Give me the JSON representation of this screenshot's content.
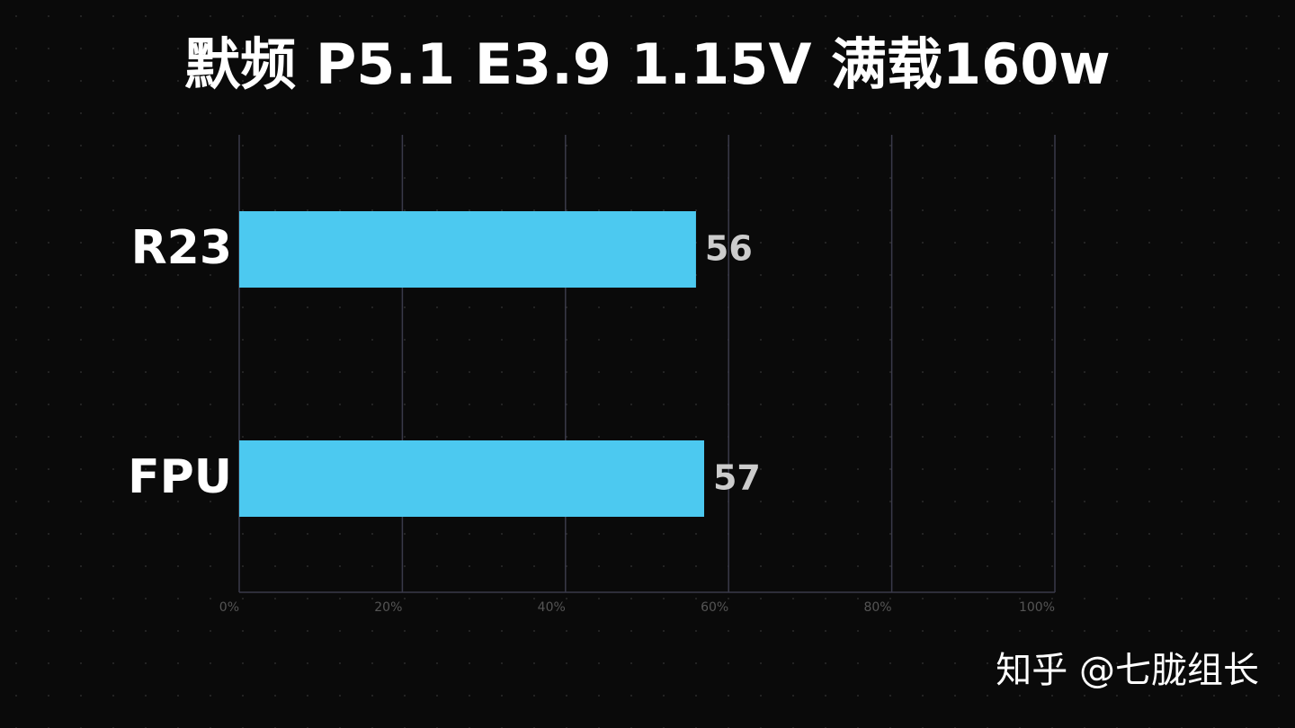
{
  "chart_data": {
    "type": "bar",
    "orientation": "horizontal",
    "title": "默频 P5.1 E3.9 1.15V 满载160w",
    "categories": [
      "R23",
      "FPU"
    ],
    "values": [
      56,
      57
    ],
    "color": "#4cc9f0",
    "xlim": [
      0,
      100
    ],
    "xticks": [
      {
        "value": 0,
        "label": "0%"
      },
      {
        "value": 20,
        "label": "20%"
      },
      {
        "value": 40,
        "label": "40%"
      },
      {
        "value": 60,
        "label": "60%"
      },
      {
        "value": 80,
        "label": "80%"
      },
      {
        "value": 100,
        "label": "100%"
      }
    ],
    "grid": true,
    "watermark": "知乎 @七胧组长"
  }
}
